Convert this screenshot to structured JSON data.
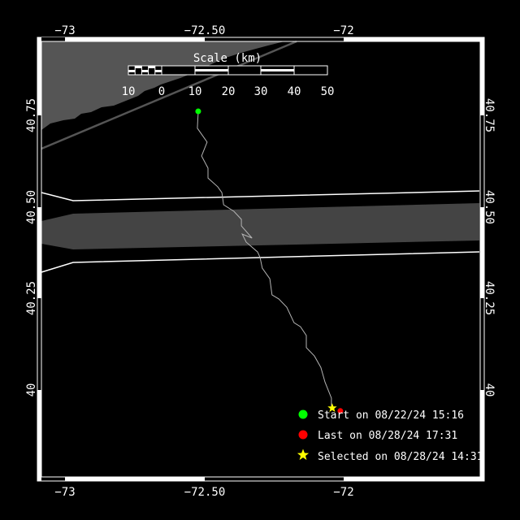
{
  "map": {
    "x_ticks": [
      {
        "lon": -73,
        "label": "−73"
      },
      {
        "lon": -72.5,
        "label": "−72.50"
      },
      {
        "lon": -72,
        "label": "−72"
      }
    ],
    "y_ticks": [
      {
        "lat": 40.75,
        "label": "40.75"
      },
      {
        "lat": 40.5,
        "label": "40.50"
      },
      {
        "lat": 40.25,
        "label": "40.25"
      },
      {
        "lat": 40,
        "label": "40"
      }
    ],
    "colors": {
      "land": "#555555",
      "band": "#444444",
      "track": "#b4b4b4",
      "start": "#00ff00",
      "last": "#ff0000",
      "selected": "#ffff00"
    },
    "track": [
      [
        -72.522,
        40.761
      ],
      [
        -72.525,
        40.715
      ],
      [
        -72.49,
        40.677
      ],
      [
        -72.51,
        40.639
      ],
      [
        -72.487,
        40.606
      ],
      [
        -72.487,
        40.579
      ],
      [
        -72.452,
        40.555
      ],
      [
        -72.437,
        40.539
      ],
      [
        -72.431,
        40.506
      ],
      [
        -72.394,
        40.488
      ],
      [
        -72.367,
        40.466
      ],
      [
        -72.367,
        40.448
      ],
      [
        -72.329,
        40.415
      ],
      [
        -72.364,
        40.426
      ],
      [
        -72.35,
        40.404
      ],
      [
        -72.309,
        40.377
      ],
      [
        -72.3,
        40.362
      ],
      [
        -72.292,
        40.333
      ],
      [
        -72.265,
        40.304
      ],
      [
        -72.257,
        40.26
      ],
      [
        -72.233,
        40.249
      ],
      [
        -72.204,
        40.226
      ],
      [
        -72.178,
        40.184
      ],
      [
        -72.155,
        40.173
      ],
      [
        -72.134,
        40.149
      ],
      [
        -72.134,
        40.116
      ],
      [
        -72.105,
        40.093
      ],
      [
        -72.082,
        40.062
      ],
      [
        -72.067,
        40.022
      ],
      [
        -72.044,
        39.978
      ],
      [
        -72.044,
        39.956
      ]
    ],
    "start_point": [
      -72.522,
      40.761
    ],
    "last_point": [
      -72.012,
      39.943
    ],
    "selected_point": [
      -72.041,
      39.951
    ]
  },
  "scale": {
    "title": "Scale (km)",
    "labels": [
      "10",
      "0",
      "10",
      "20",
      "30",
      "40",
      "50"
    ]
  },
  "legend": {
    "start": "Start on 08/22/24 15:16",
    "last": "Last on 08/28/24 17:31",
    "selected": "Selected on 08/28/24 14:31"
  }
}
